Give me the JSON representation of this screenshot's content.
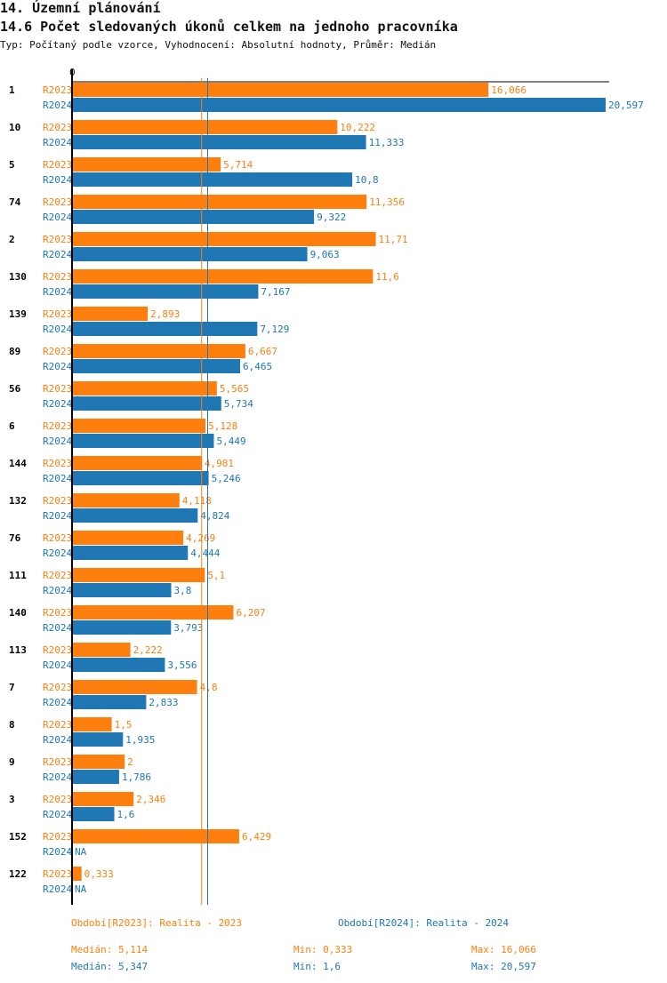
{
  "header": {
    "title": "14. Územní plánování",
    "subtitle": "14.6 Počet sledovaných úkonů celkem na jednoho pracovníka",
    "meta": "Typ: Počítaný podle vzorce, Vyhodnocení: Absolutní hodnoty, Průměr: Medián"
  },
  "colors": {
    "R2023": "#ff7f0e",
    "R2024": "#1f77b4"
  },
  "chart_data": {
    "type": "bar",
    "orientation": "horizontal",
    "axis_zero_label": "0",
    "categories": [
      "1",
      "10",
      "5",
      "74",
      "2",
      "130",
      "139",
      "89",
      "56",
      "6",
      "144",
      "132",
      "76",
      "111",
      "140",
      "113",
      "7",
      "8",
      "9",
      "3",
      "152",
      "122"
    ],
    "series": [
      {
        "name": "R2023",
        "values": [
          16.066,
          10.222,
          5.714,
          11.356,
          11.71,
          11.6,
          2.893,
          6.667,
          5.565,
          5.128,
          4.981,
          4.118,
          4.269,
          5.1,
          6.207,
          2.222,
          4.8,
          1.5,
          2,
          2.346,
          6.429,
          0.333
        ]
      },
      {
        "name": "R2024",
        "values": [
          20.597,
          11.333,
          10.8,
          9.322,
          9.063,
          7.167,
          7.129,
          6.465,
          5.734,
          5.449,
          5.246,
          4.824,
          4.444,
          3.8,
          3.793,
          3.556,
          2.833,
          1.935,
          1.786,
          1.6,
          null,
          null
        ]
      }
    ],
    "na_label": "NA",
    "medians": {
      "R2023": 5.114,
      "R2024": 5.347
    },
    "xlim": [
      0,
      20.597
    ]
  },
  "legend": {
    "r2023": "Období[R2023]: Realita - 2023",
    "r2024": "Období[R2024]: Realita - 2024"
  },
  "stats": {
    "r2023": {
      "median": "Medián: 5,114",
      "min": "Min: 0,333",
      "max": "Max: 16,066"
    },
    "r2024": {
      "median": "Medián: 5,347",
      "min": "Min: 1,6",
      "max": "Max: 20,597"
    }
  }
}
